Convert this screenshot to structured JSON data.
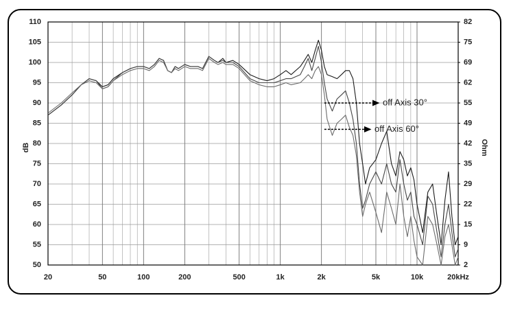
{
  "chart_data": {
    "type": "line",
    "y_label": "dB",
    "y2_label": "Ohm",
    "log_x": true,
    "grid": true,
    "minor_grid": true,
    "xlim": [
      20,
      20000
    ],
    "xticks": [
      20,
      50,
      100,
      200,
      500,
      {
        "value": 1000,
        "label": "1k"
      },
      {
        "value": 2000,
        "label": "2k"
      },
      {
        "value": 5000,
        "label": "5k"
      },
      {
        "value": 10000,
        "label": "10k"
      },
      {
        "value": 20000,
        "label": "20kHz"
      }
    ],
    "ylim": [
      50,
      110
    ],
    "yticks": [
      50,
      55,
      60,
      65,
      70,
      75,
      80,
      85,
      90,
      95,
      100,
      105,
      110
    ],
    "y2lim": [
      2,
      82
    ],
    "y2ticks": [
      2,
      {
        "value": 8.67,
        "label": "9"
      },
      {
        "value": 15.33,
        "label": "15"
      },
      22,
      {
        "value": 28.67,
        "label": "29"
      },
      {
        "value": 35.33,
        "label": "35"
      },
      42,
      {
        "value": 48.67,
        "label": "49"
      },
      {
        "value": 55.33,
        "label": "55"
      },
      62,
      {
        "value": 68.67,
        "label": "69"
      },
      {
        "value": 75.33,
        "label": "75"
      },
      82
    ],
    "x": [
      20,
      25,
      30,
      35,
      40,
      45,
      50,
      55,
      60,
      70,
      80,
      90,
      100,
      110,
      120,
      130,
      140,
      150,
      160,
      170,
      180,
      200,
      220,
      250,
      270,
      300,
      330,
      350,
      380,
      400,
      450,
      500,
      600,
      700,
      800,
      900,
      1000,
      1100,
      1200,
      1400,
      1500,
      1600,
      1700,
      1800,
      1900,
      2000,
      2100,
      2200,
      2400,
      2600,
      2800,
      3000,
      3200,
      3400,
      3600,
      3800,
      4000,
      4200,
      4500,
      5000,
      5500,
      6000,
      6500,
      7000,
      7500,
      8000,
      8500,
      9000,
      9500,
      10000,
      11000,
      12000,
      13000,
      14000,
      15000,
      16000,
      17000,
      18000,
      19000,
      20000
    ],
    "series": [
      {
        "color": "#1a1a1a",
        "values": [
          87,
          89.5,
          92,
          94.5,
          96,
          95.5,
          94,
          94.5,
          96,
          97.5,
          98.5,
          99,
          99,
          98.5,
          99.5,
          101,
          100.5,
          98,
          97.5,
          99,
          98.5,
          99.5,
          99,
          99,
          98.5,
          101.5,
          100.5,
          100,
          101,
          100,
          100.5,
          99.5,
          97,
          96,
          95.5,
          96,
          97,
          98,
          97,
          99,
          100.5,
          102,
          100,
          103,
          105.5,
          103,
          99,
          97,
          96.5,
          96,
          97,
          98,
          98,
          96,
          90,
          80,
          75,
          70,
          74,
          76,
          80,
          83,
          75,
          72,
          78,
          76,
          72,
          74,
          71,
          65,
          58,
          68,
          70,
          62,
          55,
          66,
          73,
          62,
          55,
          57
        ]
      },
      {
        "color": "#444444",
        "values": [
          87,
          89.5,
          92,
          94.5,
          96,
          95.5,
          93.5,
          94,
          95.5,
          97.5,
          98.5,
          99,
          99,
          98.5,
          99.5,
          101,
          100.5,
          98,
          97.5,
          99,
          98.5,
          99.5,
          99,
          99,
          98.5,
          101.5,
          100.5,
          100,
          100.5,
          100,
          100,
          99,
          96,
          95,
          95,
          95,
          95.5,
          96,
          96,
          97,
          99,
          101,
          98,
          101,
          104,
          100,
          95,
          91,
          88,
          91,
          92,
          93,
          90,
          86,
          80,
          70,
          64,
          66,
          70,
          73,
          70,
          75,
          70,
          68,
          76,
          70,
          66,
          68,
          62,
          60,
          55,
          67,
          65,
          58,
          52,
          60,
          65,
          58,
          52,
          54
        ]
      },
      {
        "color": "#6a6a6a",
        "values": [
          87.5,
          90,
          92.5,
          94.5,
          95.5,
          95,
          93.5,
          94,
          95.5,
          97,
          98,
          98.5,
          98.5,
          98,
          99,
          100.5,
          100,
          98,
          97.5,
          98.5,
          98,
          99,
          98.5,
          98.5,
          98,
          101,
          100,
          99.5,
          100,
          99.5,
          99.5,
          98.5,
          95.5,
          94.5,
          94,
          94,
          94.5,
          95,
          94.5,
          95,
          96,
          97,
          96,
          98,
          99,
          97,
          92,
          86,
          82,
          85,
          86,
          87,
          84,
          82,
          77,
          68,
          62,
          65,
          68,
          63,
          58,
          68,
          64,
          60,
          70,
          62,
          57,
          62,
          56,
          52,
          50,
          62,
          60,
          55,
          50,
          57,
          60,
          55,
          50,
          52
        ]
      }
    ],
    "annotations": [
      {
        "text": "off Axis 30°",
        "x": 2100,
        "y": 90
      },
      {
        "text": "off Axis 60°",
        "x": 2100,
        "y": 83.5
      }
    ]
  }
}
